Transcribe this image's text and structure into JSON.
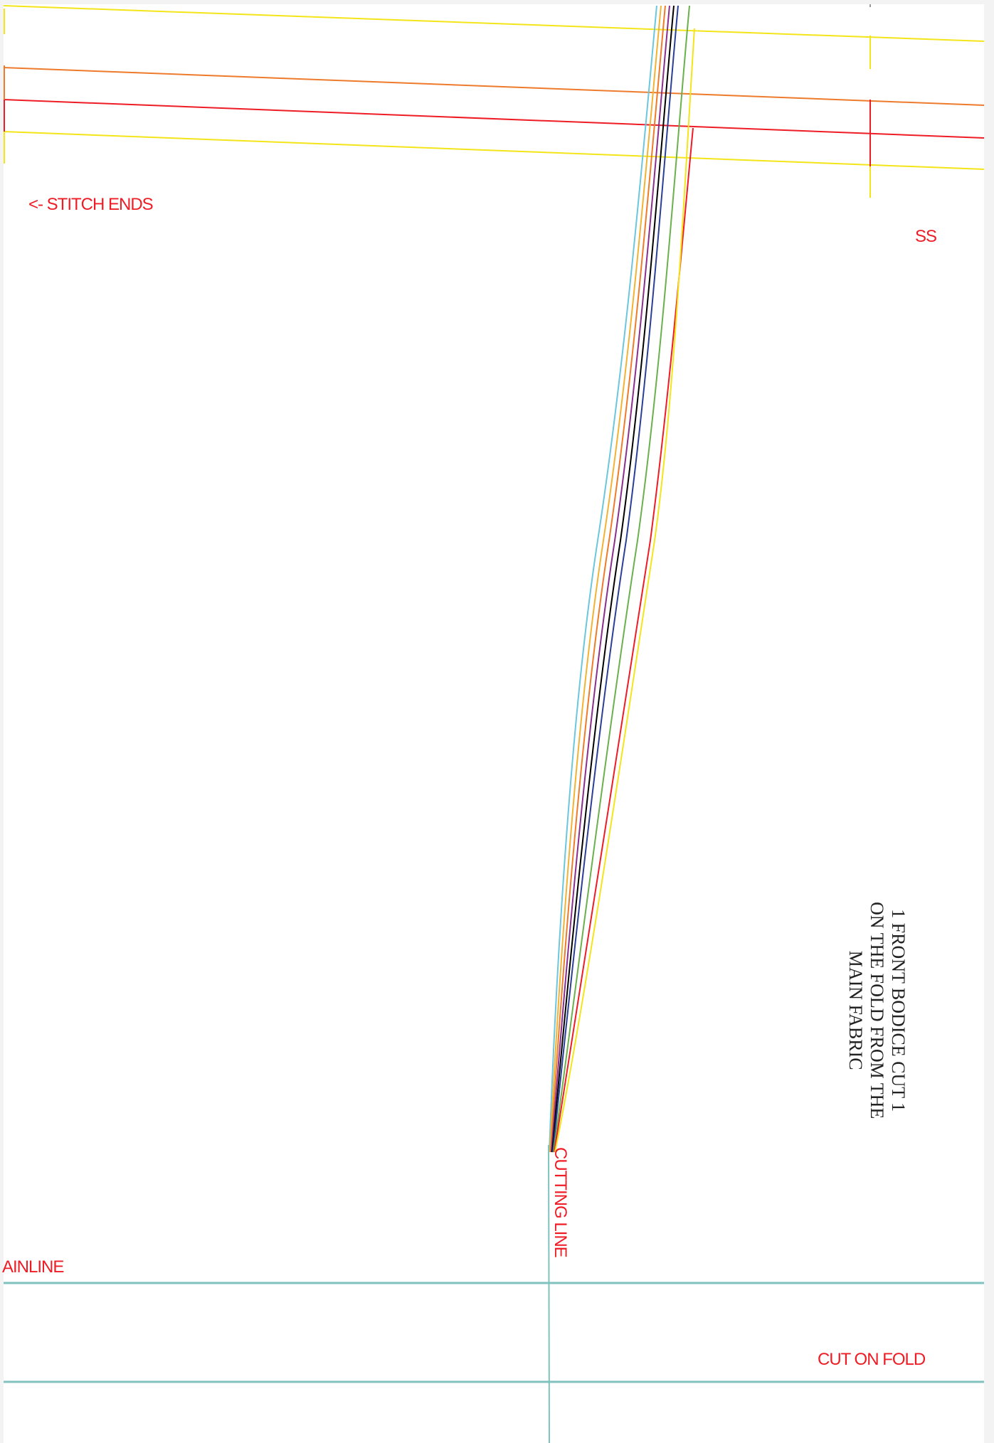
{
  "labels": {
    "stitch_ends": "<- STITCH ENDS",
    "ss": "SS",
    "cutting_line": "CUTTING LINE",
    "grainline": "AINLINE",
    "cut_on_fold": "CUT ON FOLD"
  },
  "instruction": {
    "line1": "1 FRONT BODICE CUT 1",
    "line2": "ON THE FOLD FROM THE",
    "line3": "MAIN FABRIC"
  },
  "colors": {
    "page_background": "#f3f3f3",
    "sheet": "#ffffff",
    "label_red": "#ee1c24",
    "grain_teal": "#7fc2be",
    "instruction_text": "#222222",
    "size_lines": [
      "#6cc6dc",
      "#f2b233",
      "#ee7b2c",
      "#8a2f8c",
      "#000000",
      "#2b3f96",
      "#6ab04c",
      "#ee1c24",
      "#f4e51a"
    ]
  }
}
